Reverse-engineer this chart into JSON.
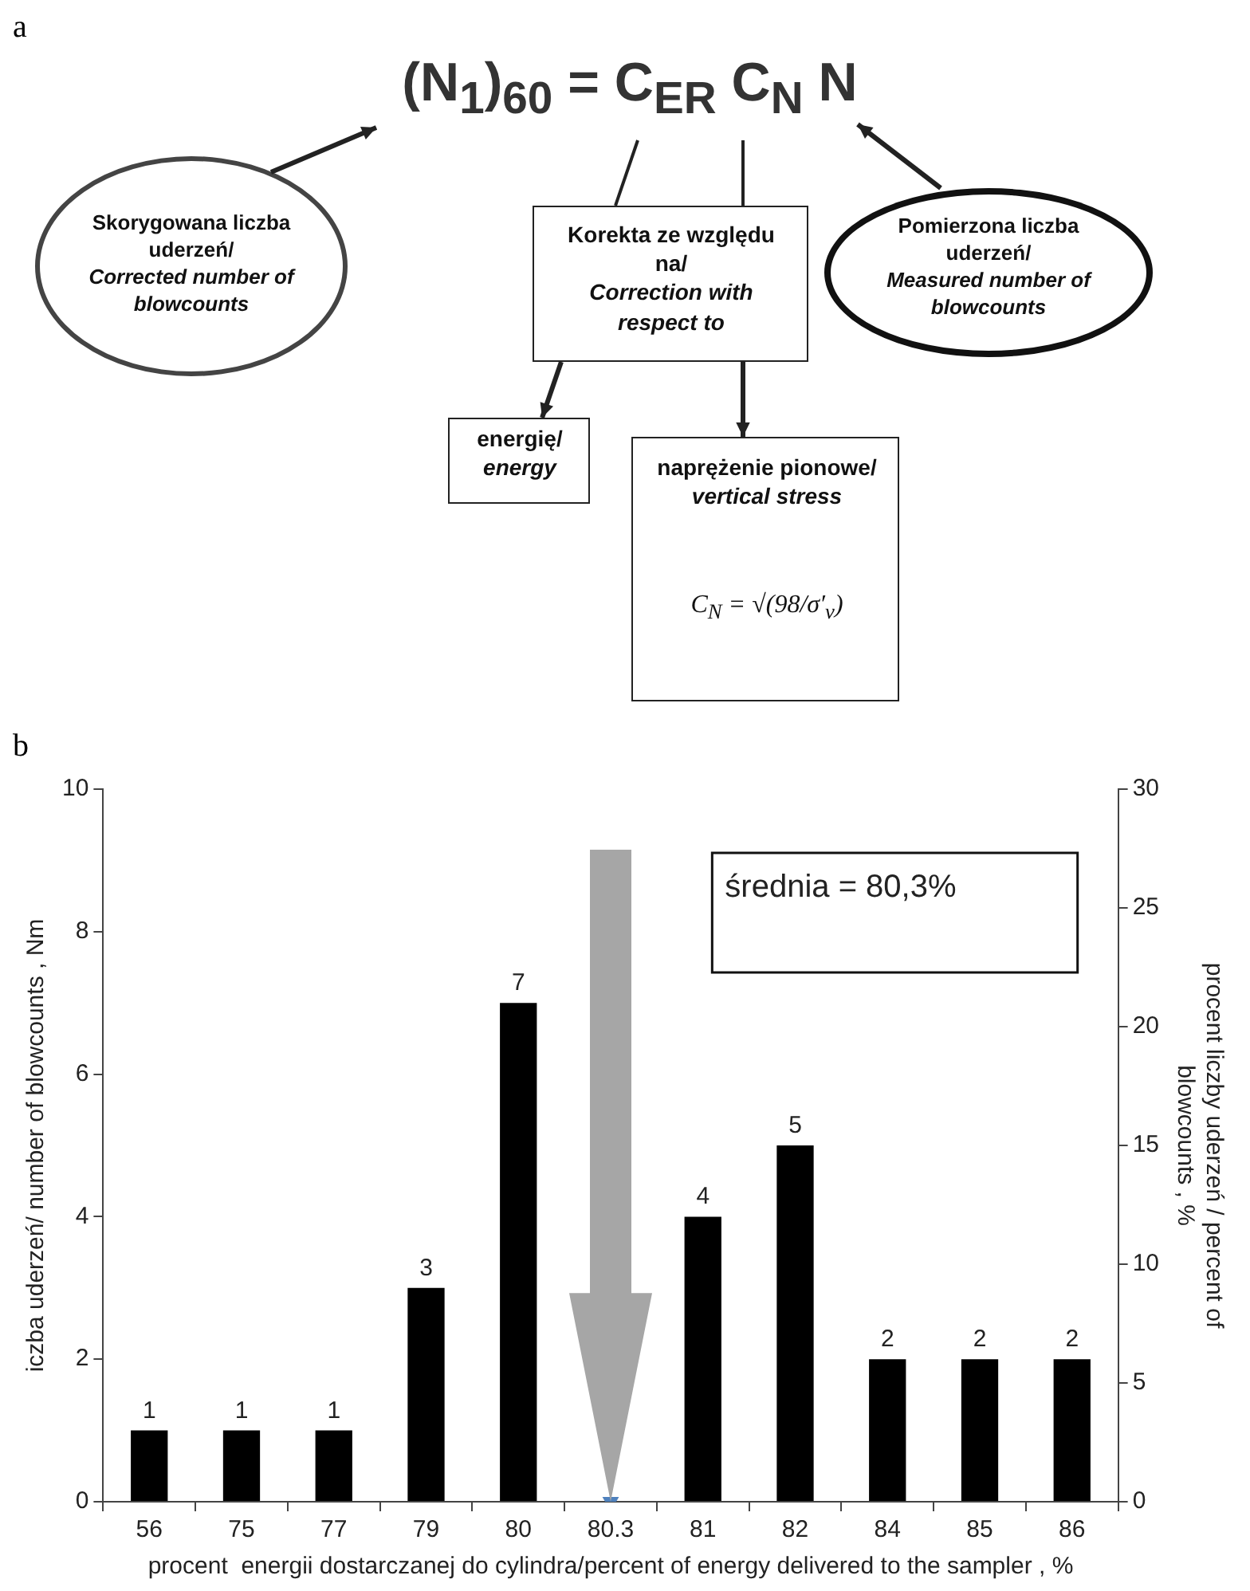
{
  "chart_data": [
    {
      "type": "other",
      "title": "a",
      "annotations": [
        "(N$_{1}$)$_{60}$ = C$_{ER}$ C$_{N}$ N",
        "Skorygowana liczba uderzeń/ Corrected number of blowcounts",
        "Korekta ze względu na/ Correction with respect to",
        "Pomierzona liczba uderzeń/ Measured number of blowcounts",
        "energię/ energy",
        "naprężenie pionowe/ vertical stress",
        "C$_{N}$ = √(98/σ′$_{v}$)"
      ]
    },
    {
      "type": "bar",
      "title": "b",
      "categories": [
        "56",
        "75",
        "77",
        "79",
        "80",
        "80.3",
        "81",
        "82",
        "84",
        "85",
        "86"
      ],
      "series": [
        {
          "color": "#000000",
          "values": [
            1,
            1,
            1,
            3,
            7,
            null,
            4,
            5,
            2,
            2,
            2
          ],
          "value_labels": [
            "1",
            "1",
            "1",
            "3",
            "7",
            null,
            "4",
            "5",
            "2",
            "2",
            "2"
          ]
        },
        {
          "type": "scatter",
          "color": "#4f81bd",
          "x": [
            "80.3"
          ],
          "values": [
            0
          ]
        }
      ],
      "marker": "triangle",
      "xlabel": "procent  energii dostarczanej do cylindra/percent of energy delivered to the sampler , %",
      "ylabel": "iczba uderzeń/ number of blowcounts , Nm",
      "y2label": "procent liczby uderzeń / percent of blowcounts , %",
      "ylim": [
        0,
        10
      ],
      "yticks": [
        0,
        2,
        4,
        6,
        8,
        10
      ],
      "y2lim": [
        0,
        30
      ],
      "y2ticks": [
        0,
        5,
        10,
        15,
        20,
        25,
        30
      ],
      "grid": false,
      "legend": false,
      "annotations": [
        "średnia = 80,3%"
      ]
    }
  ]
}
